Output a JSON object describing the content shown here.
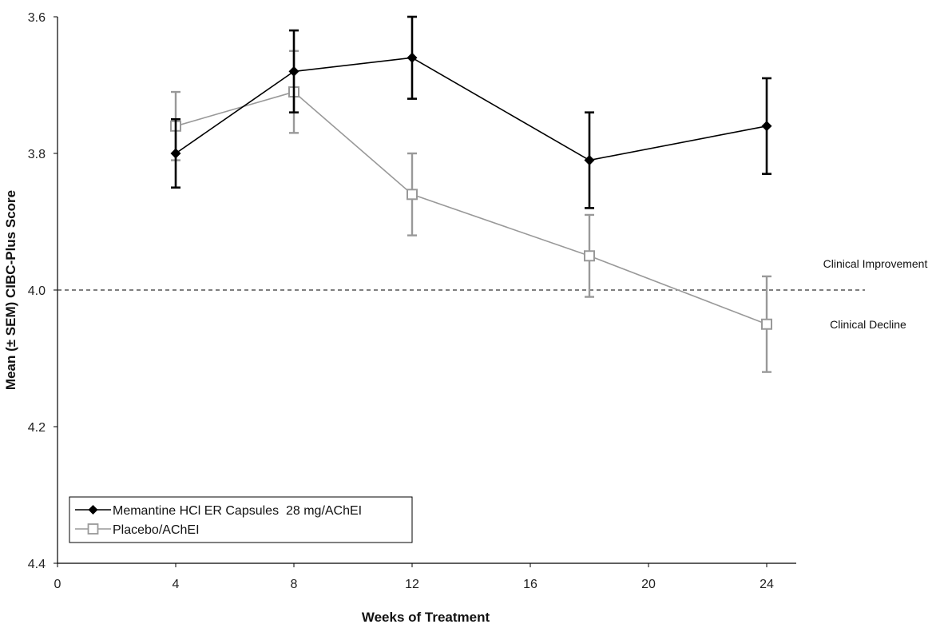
{
  "chart_data": {
    "type": "line",
    "title": "",
    "xlabel": "Weeks of Treatment",
    "ylabel": "Mean (± SEM) CIBC-Plus Score",
    "xlim": [
      0,
      25
    ],
    "ylim": [
      3.6,
      4.4
    ],
    "y_inverted": true,
    "x_ticks": [
      0,
      4,
      8,
      12,
      16,
      20,
      24
    ],
    "x_tick_labels": [
      "0",
      "4",
      "8",
      "12",
      "16",
      "20",
      "24"
    ],
    "y_ticks": [
      3.6,
      3.8,
      4.0,
      4.2,
      4.4
    ],
    "y_tick_labels": [
      "3.6",
      "3.8",
      "4.0",
      "4.2",
      "4.4"
    ],
    "grid": false,
    "legend_position": "bottom-left",
    "reference_line": {
      "y": 4.0,
      "style": "dashed"
    },
    "annotations": [
      {
        "text": "Clinical Improvement",
        "position": "above-reference-right"
      },
      {
        "text": "Clinical Decline",
        "position": "below-reference-right"
      }
    ],
    "series": [
      {
        "name": "Memantine HCl ER Capsules  28 mg/AChEI",
        "color": "#000000",
        "marker": "filled-diamond",
        "x": [
          4,
          8,
          12,
          18,
          24
        ],
        "values": [
          3.8,
          3.68,
          3.66,
          3.81,
          3.76
        ],
        "err_low": [
          3.75,
          3.62,
          3.6,
          3.74,
          3.69
        ],
        "err_high": [
          3.85,
          3.74,
          3.72,
          3.88,
          3.83
        ]
      },
      {
        "name": "Placebo/AChEI",
        "color": "#999999",
        "marker": "open-square",
        "x": [
          4,
          8,
          12,
          18,
          24
        ],
        "values": [
          3.76,
          3.71,
          3.86,
          3.95,
          4.05
        ],
        "err_low": [
          3.71,
          3.65,
          3.8,
          3.89,
          3.98
        ],
        "err_high": [
          3.81,
          3.77,
          3.92,
          4.01,
          4.12
        ]
      }
    ]
  }
}
